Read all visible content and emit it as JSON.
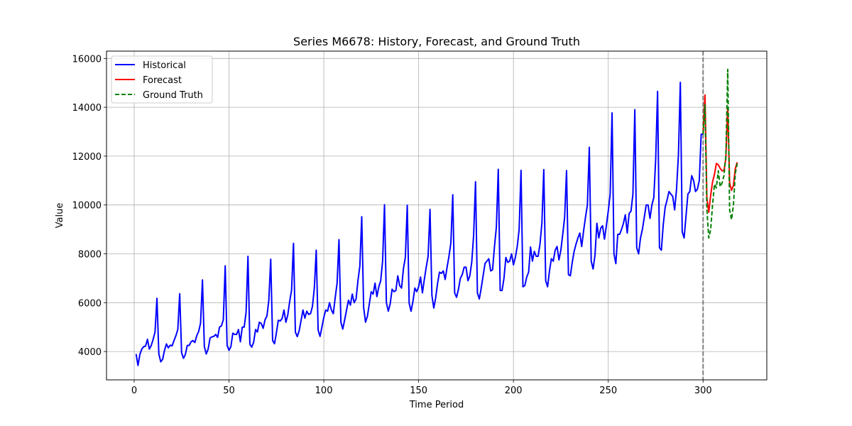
{
  "chart_data": {
    "type": "line",
    "title": "Series M6678: History, Forecast, and Ground Truth",
    "xlabel": "Time Period",
    "ylabel": "Value",
    "xlim": [
      -14.6,
      333.6
    ],
    "ylim": [
      2840,
      16300
    ],
    "x_ticks": [
      0,
      50,
      100,
      150,
      200,
      250,
      300
    ],
    "y_ticks": [
      4000,
      6000,
      8000,
      10000,
      12000,
      14000,
      16000
    ],
    "grid": true,
    "legend_position": "top-left",
    "forecast_start": 300,
    "series": [
      {
        "name": "Historical",
        "color": "#0000ff",
        "style": "solid",
        "x_start": 1,
        "values": [
          3900,
          3430,
          3880,
          4100,
          4200,
          4220,
          4500,
          4100,
          4250,
          4500,
          4800,
          6180,
          3900,
          3580,
          3680,
          4050,
          4310,
          4150,
          4260,
          4230,
          4450,
          4650,
          4900,
          6370,
          3950,
          3720,
          3880,
          4250,
          4250,
          4400,
          4450,
          4370,
          4650,
          4820,
          5160,
          6930,
          4200,
          3900,
          4100,
          4550,
          4600,
          4620,
          4700,
          4580,
          5000,
          5050,
          5300,
          7510,
          4250,
          4050,
          4200,
          4750,
          4700,
          4700,
          4900,
          4400,
          5000,
          5000,
          5600,
          7900,
          4300,
          4180,
          4380,
          4900,
          4800,
          5200,
          5150,
          4950,
          5300,
          5450,
          6100,
          7780,
          4450,
          4320,
          4770,
          5280,
          5250,
          5350,
          5700,
          5200,
          5500,
          6050,
          6520,
          8430,
          4800,
          4610,
          4850,
          5270,
          5700,
          5370,
          5650,
          5520,
          5550,
          5850,
          6600,
          8150,
          4880,
          4620,
          5000,
          5400,
          5700,
          5650,
          6000,
          5700,
          5550,
          6200,
          6800,
          8580,
          5200,
          4920,
          5300,
          5700,
          6100,
          5900,
          6350,
          6000,
          6150,
          6900,
          7500,
          9520,
          5800,
          5200,
          5450,
          5950,
          6450,
          6350,
          6800,
          6250,
          6650,
          6900,
          7700,
          10010,
          6000,
          5650,
          5950,
          6550,
          6450,
          6500,
          7100,
          6700,
          6600,
          7400,
          7850,
          9990,
          5980,
          5650,
          6050,
          6600,
          6450,
          6650,
          7050,
          6400,
          6950,
          7450,
          7900,
          9820,
          6300,
          5780,
          6200,
          6800,
          7250,
          7200,
          7300,
          6950,
          7450,
          7900,
          8450,
          10420,
          6400,
          6220,
          6550,
          7000,
          7150,
          7450,
          7450,
          6900,
          7100,
          7650,
          8750,
          10950,
          6400,
          6150,
          6600,
          7100,
          7600,
          7700,
          7800,
          7300,
          7350,
          8300,
          9100,
          11460,
          6500,
          6500,
          7000,
          7850,
          7650,
          7700,
          8000,
          7550,
          7850,
          8300,
          9000,
          11420,
          6650,
          6700,
          7050,
          7250,
          8280,
          7700,
          8100,
          7900,
          7900,
          8400,
          9250,
          11450,
          6900,
          6650,
          7300,
          7800,
          7700,
          8150,
          8300,
          7750,
          8150,
          8800,
          9500,
          11410,
          7150,
          7100,
          7650,
          8100,
          8400,
          8650,
          8850,
          8300,
          8950,
          9500,
          10000,
          12360,
          7700,
          7380,
          7950,
          9250,
          8650,
          9050,
          9150,
          8600,
          9150,
          9750,
          10450,
          13770,
          8000,
          7600,
          8800,
          8800,
          9000,
          9250,
          9600,
          8850,
          9650,
          9750,
          10450,
          13900,
          8250,
          8000,
          8650,
          9000,
          9500,
          10000,
          10000,
          9450,
          10000,
          10300,
          11850,
          14650,
          8250,
          8150,
          9200,
          9900,
          10200,
          10550,
          10450,
          10350,
          9800,
          10650,
          12050,
          15020,
          8900,
          8650,
          9550,
          10450,
          10550,
          11200,
          11000,
          10550,
          10650,
          11000,
          12900,
          12900
        ]
      },
      {
        "name": "Forecast",
        "color": "#ff0000",
        "style": "solid",
        "x_start": 300,
        "values": [
          12900,
          14500,
          10300,
          9700,
          10400,
          10950,
          11250,
          11700,
          11650,
          11500,
          11400,
          11400,
          11900,
          14000,
          10900,
          10600,
          10800,
          11500,
          11750
        ]
      },
      {
        "name": "Ground Truth",
        "color": "#008000",
        "style": "dashed",
        "x_start": 300,
        "values": [
          12900,
          14100,
          9800,
          8650,
          9000,
          10000,
          10850,
          10700,
          11400,
          10750,
          10900,
          11200,
          12000,
          15550,
          9800,
          9400,
          10000,
          11300,
          11700
        ]
      }
    ]
  }
}
